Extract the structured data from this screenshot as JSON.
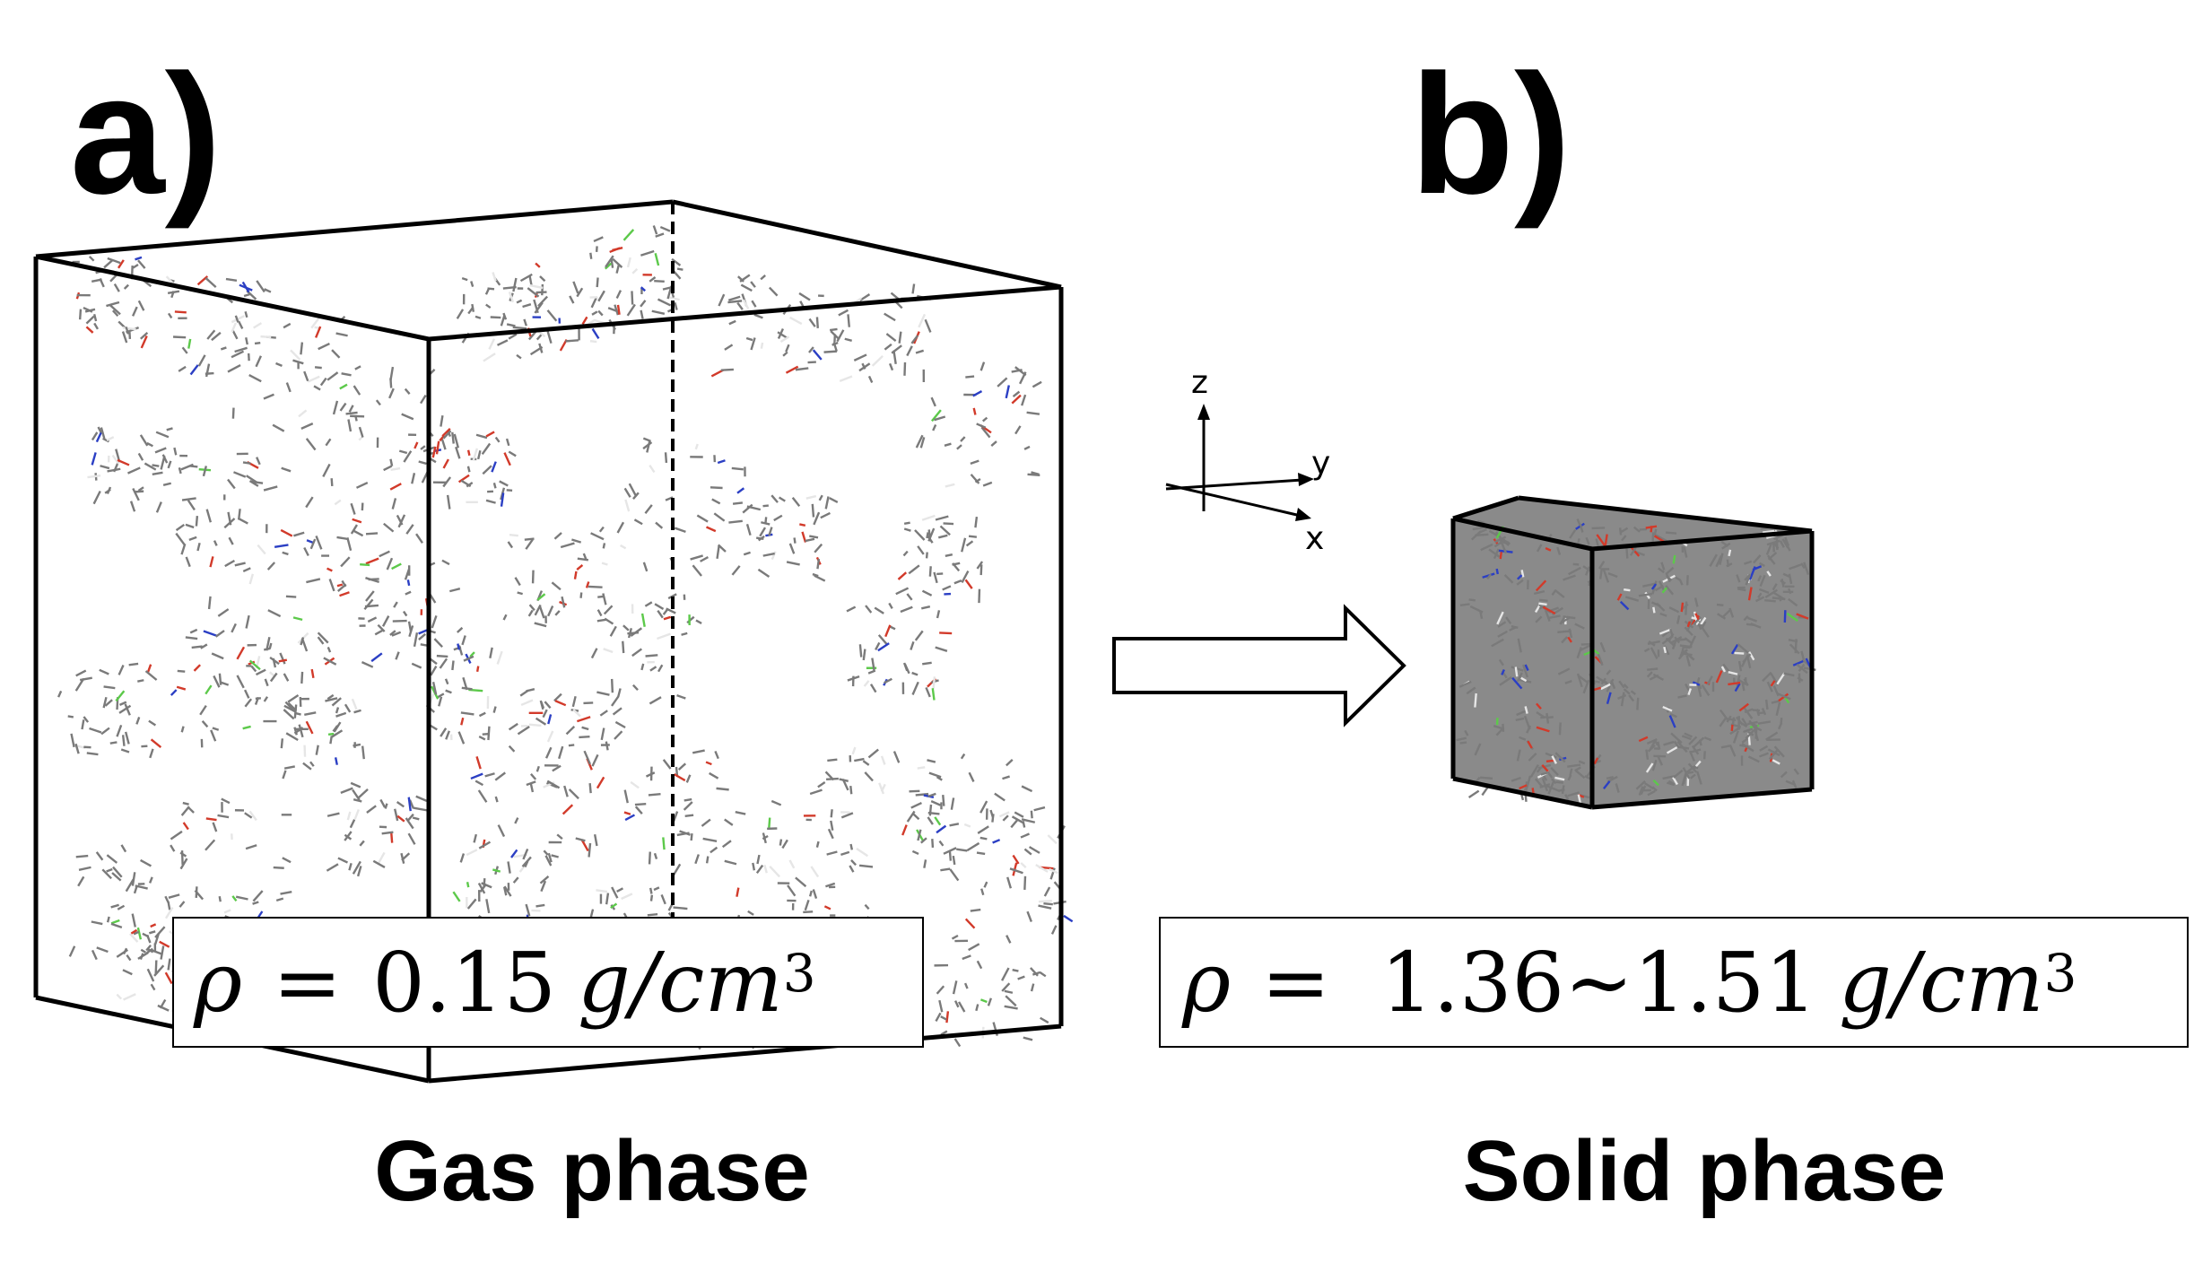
{
  "panel_a": {
    "letter": "a)",
    "density": {
      "symbol": "ρ",
      "equals": "=",
      "value": "0.15",
      "unit": "g/cm",
      "exponent": "3"
    },
    "caption": "Gas phase",
    "box_edge_color": "#000000"
  },
  "panel_b": {
    "letter": "b)",
    "density": {
      "symbol": "ρ",
      "equals": "=",
      "value": "1.36~1.51",
      "unit": "g/cm",
      "exponent": "3"
    },
    "caption": "Solid phase",
    "box_edge_color": "#000000"
  },
  "axes": {
    "z": "z",
    "y": "y",
    "x": "x"
  },
  "transition_arrow": "gas-to-solid",
  "molecule_colors": {
    "carbon": "#7a7a7a",
    "oxygen": "#d23a2a",
    "nitrogen": "#2b3fc4",
    "halogen": "#5cc94a",
    "hydrogen": "#e6e6e6"
  }
}
